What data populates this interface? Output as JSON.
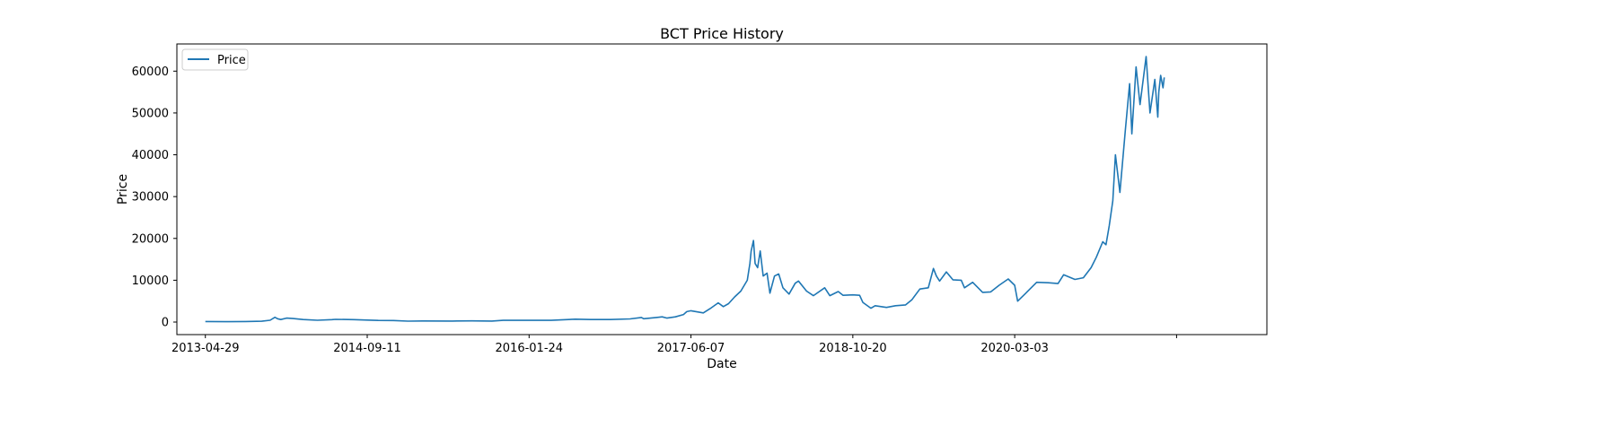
{
  "chart_data": {
    "type": "line",
    "title": "BCT Price History",
    "xlabel": "Date",
    "ylabel": "Price",
    "x_axis_type": "date",
    "xlim": [
      "2013-01-31",
      "2022-04-21"
    ],
    "ylim": [
      -3000,
      66500
    ],
    "grid": false,
    "legend_position": "top-left",
    "x_ticks": [
      {
        "date": "2013-04-29",
        "label": "2013-04-29"
      },
      {
        "date": "2014-09-11",
        "label": "2014-09-11"
      },
      {
        "date": "2016-01-24",
        "label": "2016-01-24"
      },
      {
        "date": "2017-06-07",
        "label": "2017-06-07"
      },
      {
        "date": "2018-10-20",
        "label": "2018-10-20"
      },
      {
        "date": "2020-03-03",
        "label": "2020-03-03"
      },
      {
        "date": "2021-07-16",
        "label": ""
      }
    ],
    "y_ticks": [
      0,
      10000,
      20000,
      30000,
      40000,
      50000,
      60000
    ],
    "series": [
      {
        "name": "Price",
        "color": "#1f77b4",
        "points": [
          [
            "2013-04-29",
            140
          ],
          [
            "2013-07-01",
            90
          ],
          [
            "2013-09-01",
            130
          ],
          [
            "2013-10-20",
            190
          ],
          [
            "2013-11-15",
            430
          ],
          [
            "2013-11-30",
            1130
          ],
          [
            "2013-12-08",
            800
          ],
          [
            "2013-12-18",
            600
          ],
          [
            "2014-01-05",
            950
          ],
          [
            "2014-01-25",
            830
          ],
          [
            "2014-02-25",
            600
          ],
          [
            "2014-04-10",
            440
          ],
          [
            "2014-05-25",
            580
          ],
          [
            "2014-06-05",
            650
          ],
          [
            "2014-08-01",
            590
          ],
          [
            "2014-09-11",
            480
          ],
          [
            "2014-10-15",
            390
          ],
          [
            "2014-12-01",
            370
          ],
          [
            "2015-01-15",
            210
          ],
          [
            "2015-03-01",
            270
          ],
          [
            "2015-06-01",
            230
          ],
          [
            "2015-08-01",
            280
          ],
          [
            "2015-10-01",
            240
          ],
          [
            "2015-11-05",
            400
          ],
          [
            "2016-01-24",
            400
          ],
          [
            "2016-04-01",
            420
          ],
          [
            "2016-06-15",
            700
          ],
          [
            "2016-08-01",
            600
          ],
          [
            "2016-10-01",
            610
          ],
          [
            "2016-12-01",
            750
          ],
          [
            "2017-01-05",
            1100
          ],
          [
            "2017-01-12",
            800
          ],
          [
            "2017-02-20",
            1100
          ],
          [
            "2017-03-10",
            1250
          ],
          [
            "2017-03-25",
            950
          ],
          [
            "2017-04-20",
            1250
          ],
          [
            "2017-05-15",
            1800
          ],
          [
            "2017-05-25",
            2500
          ],
          [
            "2017-06-07",
            2700
          ],
          [
            "2017-07-15",
            2200
          ],
          [
            "2017-08-05",
            3200
          ],
          [
            "2017-08-30",
            4600
          ],
          [
            "2017-09-15",
            3700
          ],
          [
            "2017-10-01",
            4400
          ],
          [
            "2017-10-20",
            6000
          ],
          [
            "2017-11-08",
            7400
          ],
          [
            "2017-11-28",
            10000
          ],
          [
            "2017-12-06",
            14000
          ],
          [
            "2017-12-10",
            17000
          ],
          [
            "2017-12-17",
            19500
          ],
          [
            "2017-12-22",
            14000
          ],
          [
            "2017-12-30",
            13000
          ],
          [
            "2018-01-07",
            17000
          ],
          [
            "2018-01-16",
            11000
          ],
          [
            "2018-01-28",
            11700
          ],
          [
            "2018-02-06",
            6900
          ],
          [
            "2018-02-20",
            11000
          ],
          [
            "2018-03-05",
            11500
          ],
          [
            "2018-03-18",
            8200
          ],
          [
            "2018-04-06",
            6700
          ],
          [
            "2018-04-25",
            9300
          ],
          [
            "2018-05-05",
            9800
          ],
          [
            "2018-05-30",
            7400
          ],
          [
            "2018-06-20",
            6300
          ],
          [
            "2018-07-25",
            8200
          ],
          [
            "2018-08-10",
            6300
          ],
          [
            "2018-09-05",
            7300
          ],
          [
            "2018-09-20",
            6400
          ],
          [
            "2018-10-20",
            6500
          ],
          [
            "2018-11-10",
            6400
          ],
          [
            "2018-11-20",
            4700
          ],
          [
            "2018-12-15",
            3300
          ],
          [
            "2018-12-28",
            3900
          ],
          [
            "2019-02-01",
            3500
          ],
          [
            "2019-03-01",
            3900
          ],
          [
            "2019-04-01",
            4100
          ],
          [
            "2019-04-20",
            5300
          ],
          [
            "2019-05-15",
            7900
          ],
          [
            "2019-06-10",
            8200
          ],
          [
            "2019-06-26",
            12800
          ],
          [
            "2019-07-05",
            11000
          ],
          [
            "2019-07-15",
            9800
          ],
          [
            "2019-08-05",
            12000
          ],
          [
            "2019-08-25",
            10100
          ],
          [
            "2019-09-20",
            10000
          ],
          [
            "2019-09-30",
            8200
          ],
          [
            "2019-10-25",
            9500
          ],
          [
            "2019-11-25",
            7100
          ],
          [
            "2019-12-20",
            7200
          ],
          [
            "2020-01-15",
            8800
          ],
          [
            "2020-02-12",
            10300
          ],
          [
            "2020-03-03",
            8800
          ],
          [
            "2020-03-12",
            5000
          ],
          [
            "2020-04-05",
            6800
          ],
          [
            "2020-05-10",
            9500
          ],
          [
            "2020-06-15",
            9400
          ],
          [
            "2020-07-15",
            9200
          ],
          [
            "2020-08-01",
            11300
          ],
          [
            "2020-09-05",
            10200
          ],
          [
            "2020-10-01",
            10600
          ],
          [
            "2020-10-25",
            13000
          ],
          [
            "2020-11-10",
            15500
          ],
          [
            "2020-11-30",
            19200
          ],
          [
            "2020-12-10",
            18500
          ],
          [
            "2020-12-20",
            23000
          ],
          [
            "2020-12-31",
            29000
          ],
          [
            "2021-01-08",
            40000
          ],
          [
            "2021-01-22",
            31000
          ],
          [
            "2021-02-08",
            46000
          ],
          [
            "2021-02-21",
            57000
          ],
          [
            "2021-02-28",
            45000
          ],
          [
            "2021-03-13",
            61000
          ],
          [
            "2021-03-25",
            52000
          ],
          [
            "2021-04-13",
            63500
          ],
          [
            "2021-04-25",
            50000
          ],
          [
            "2021-05-10",
            58000
          ],
          [
            "2021-05-19",
            49000
          ],
          [
            "2021-05-22",
            55000
          ],
          [
            "2021-05-28",
            59000
          ],
          [
            "2021-06-04",
            56000
          ],
          [
            "2021-06-08",
            58500
          ]
        ]
      }
    ]
  }
}
